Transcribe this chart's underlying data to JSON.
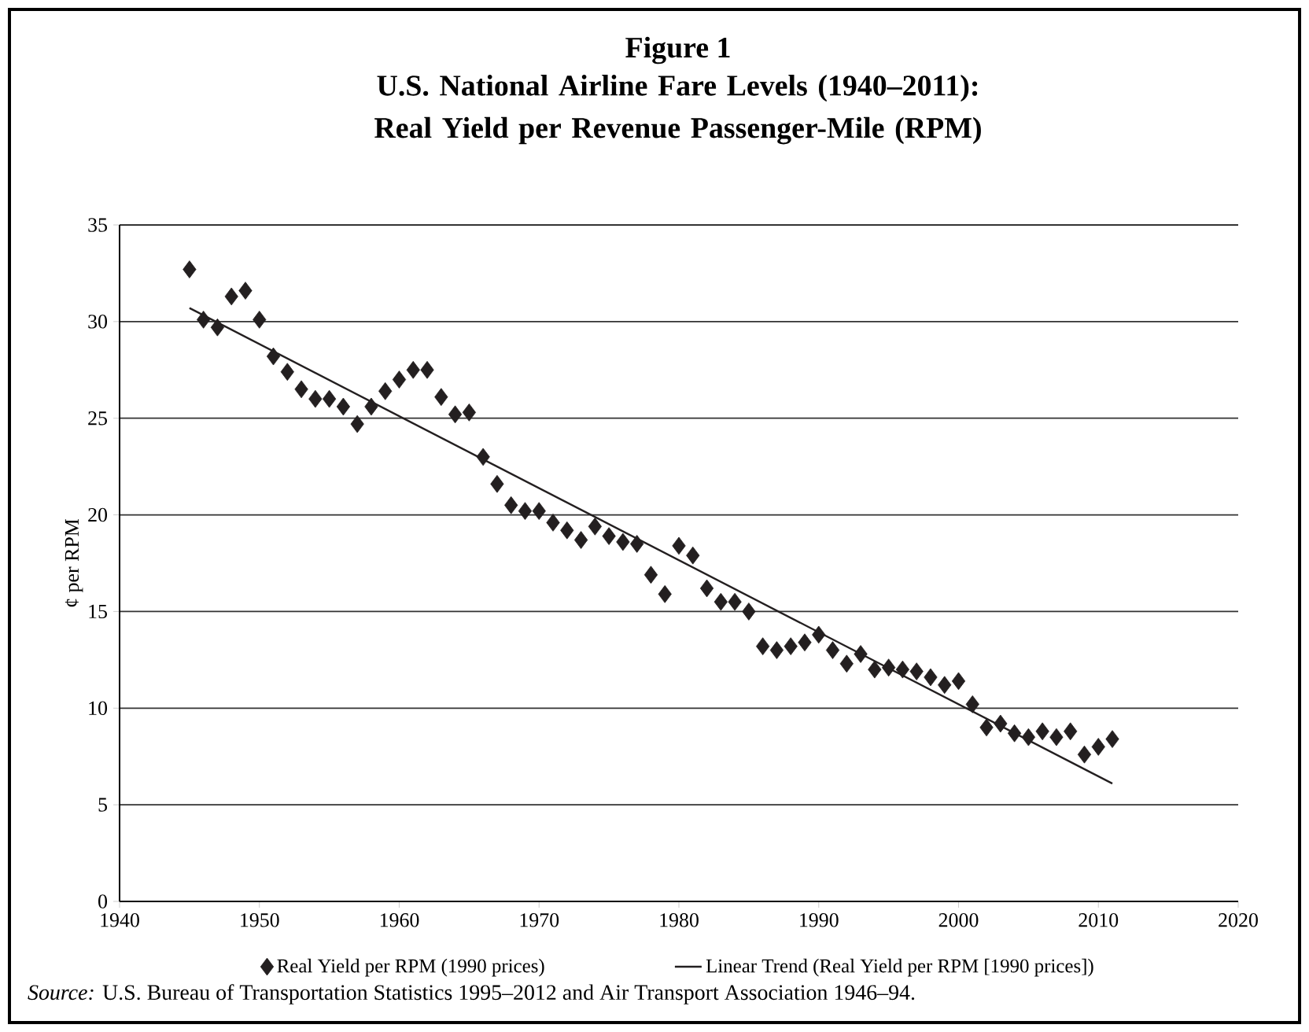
{
  "chart_data": {
    "type": "scatter",
    "title": "Figure 1",
    "subtitle": "U.S. National Airline Fare Levels (1940–2011): Real Yield per Revenue Passenger-Mile (RPM)",
    "ylabel": "¢ per RPM",
    "annotations": [
      "*Source:* U.S. Bureau of Transportation Statistics 1995–2012 and Air Transport Association 1946–94."
    ],
    "xlim": [
      1940,
      2020
    ],
    "xticks": [
      1940,
      1950,
      1960,
      1970,
      1980,
      1990,
      2000,
      2010,
      2020
    ],
    "ylim": [
      0,
      35
    ],
    "yticks": [
      0,
      5,
      10,
      15,
      20,
      25,
      30,
      35
    ],
    "grid": "y",
    "legend": "bottom",
    "series": [
      {
        "name": "Real Yield per RPM (1990 prices)",
        "marker": "diamond",
        "color": "#231f20",
        "x": [
          1945,
          1946,
          1947,
          1948,
          1949,
          1950,
          1951,
          1952,
          1953,
          1954,
          1955,
          1956,
          1957,
          1958,
          1959,
          1960,
          1961,
          1962,
          1963,
          1964,
          1965,
          1966,
          1967,
          1968,
          1969,
          1970,
          1971,
          1972,
          1973,
          1974,
          1975,
          1976,
          1977,
          1978,
          1979,
          1980,
          1981,
          1982,
          1983,
          1984,
          1985,
          1986,
          1987,
          1988,
          1989,
          1990,
          1991,
          1992,
          1993,
          1994,
          1995,
          1996,
          1997,
          1998,
          1999,
          2000,
          2001,
          2002,
          2003,
          2004,
          2005,
          2006,
          2007,
          2008,
          2009,
          2010,
          2011
        ],
        "values": [
          32.7,
          30.1,
          29.7,
          31.3,
          31.6,
          30.1,
          28.2,
          27.4,
          26.5,
          26.0,
          26.0,
          25.6,
          24.7,
          25.6,
          26.4,
          27.0,
          27.5,
          27.5,
          26.1,
          25.2,
          25.3,
          23.0,
          21.6,
          20.5,
          20.2,
          20.2,
          19.6,
          19.2,
          18.7,
          19.4,
          18.9,
          18.6,
          18.5,
          16.9,
          15.9,
          18.4,
          17.9,
          16.2,
          15.5,
          15.5,
          15.0,
          13.2,
          13.0,
          13.2,
          13.4,
          13.8,
          13.0,
          12.3,
          12.8,
          12.0,
          12.1,
          12.0,
          11.9,
          11.6,
          11.2,
          11.4,
          10.2,
          9.0,
          9.2,
          8.7,
          8.5,
          8.8,
          8.5,
          8.8,
          7.6,
          8.0,
          8.4
        ]
      },
      {
        "name": "Linear Trend (Real Yield per RPM [1990 prices])",
        "type": "line",
        "line_style": "solid",
        "marker": "none",
        "color": "#231f20",
        "x": [
          1945,
          2011
        ],
        "values": [
          30.7,
          6.1
        ]
      }
    ]
  }
}
